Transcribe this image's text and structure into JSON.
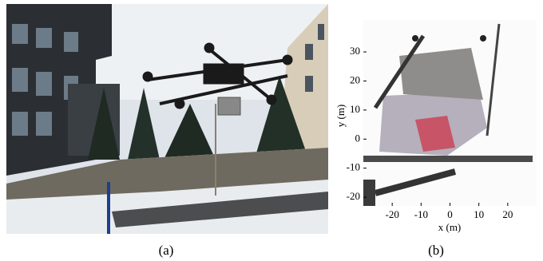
{
  "captions": [
    "(a)",
    "(b)"
  ],
  "chart_data": {
    "type": "map",
    "xlabel": "x (m)",
    "ylabel": "y (m)",
    "xlim": [
      -30,
      30
    ],
    "ylim": [
      -23,
      41
    ],
    "xticks": [
      -20,
      -10,
      0,
      10,
      20
    ],
    "yticks": [
      -20,
      -10,
      0,
      10,
      20,
      30
    ]
  }
}
